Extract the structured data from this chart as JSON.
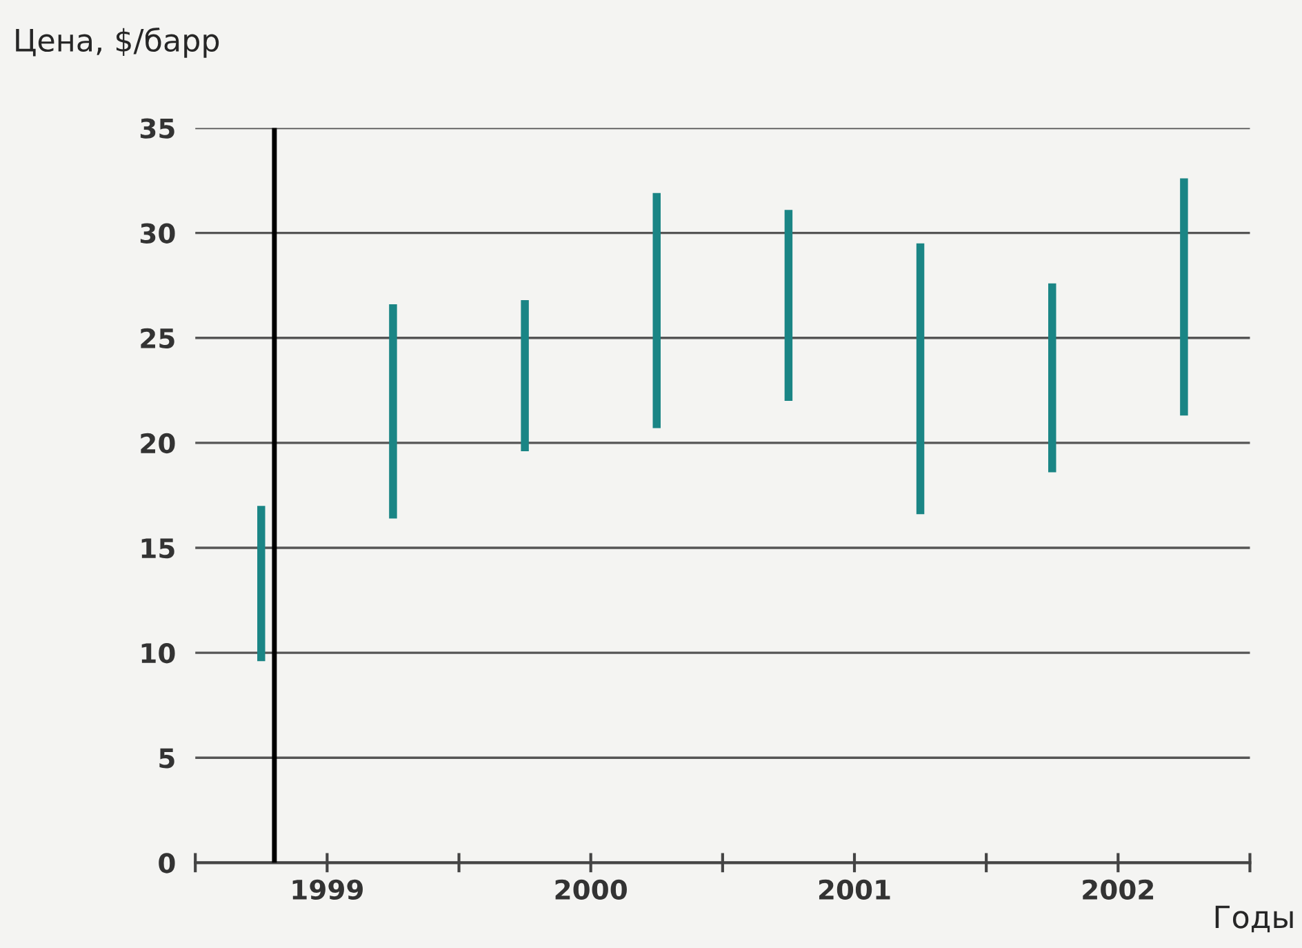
{
  "chart_data": {
    "type": "bar",
    "ylabel": "Цена, $/барр",
    "xlabel": "Годы",
    "x": [
      1998.75,
      1999.25,
      1999.75,
      2000.25,
      2000.75,
      2001.25,
      2001.75,
      2002.25
    ],
    "base": [
      9.6,
      16.4,
      19.6,
      20.7,
      22.0,
      16.6,
      18.6,
      21.3
    ],
    "values": [
      7.4,
      10.2,
      7.2,
      11.2,
      9.1,
      12.9,
      9.0,
      11.3
    ],
    "color": "#1a8585",
    "xlim": [
      1998.5,
      2002.5
    ],
    "xticks": [
      {
        "value": 1998.5,
        "label": null
      },
      {
        "value": 1999,
        "label": "1999"
      },
      {
        "value": 1999.5,
        "label": null
      },
      {
        "value": 2000,
        "label": "2000"
      },
      {
        "value": 2000.5,
        "label": null
      },
      {
        "value": 2001,
        "label": "2001"
      },
      {
        "value": 2001.5,
        "label": null
      },
      {
        "value": 2002,
        "label": "2002"
      },
      {
        "value": 2002.5,
        "label": null
      }
    ],
    "ylim": [
      0,
      35
    ],
    "yticks": [
      0,
      5,
      10,
      15,
      20,
      25,
      30,
      35
    ],
    "grid": "y",
    "ref_lines": [
      {
        "axis": "x",
        "value": 1998.8,
        "label": null,
        "color": "#000000"
      }
    ]
  }
}
